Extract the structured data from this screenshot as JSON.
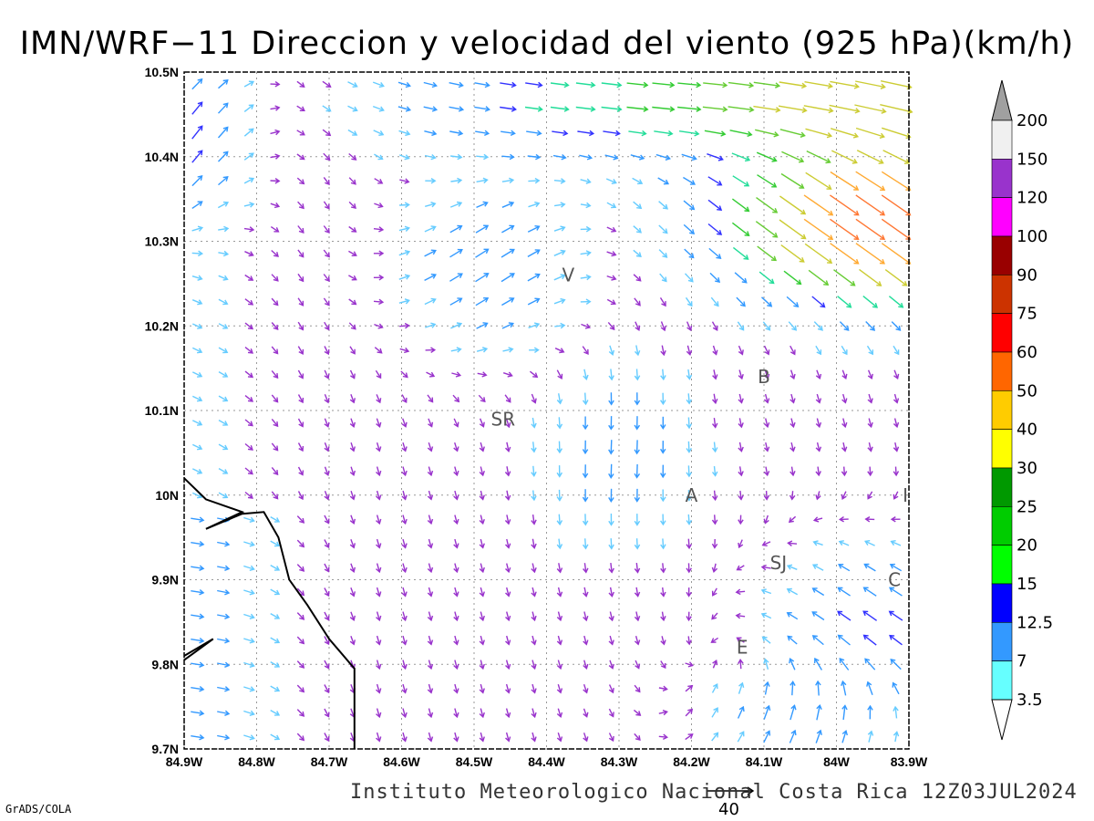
{
  "title": "IMN/WRF−11 Direccion y velocidad del viento (925 hPa)(km/h)",
  "footer": "Instituto Meteorologico Nacional Costa Rica 12Z03JUL2024",
  "software_credit": "GrADS/COLA",
  "reference_vector_label": "40",
  "map": {
    "lat_range": [
      9.7,
      10.5
    ],
    "lon_range": [
      -84.9,
      -83.9
    ],
    "grid": "dotted",
    "lat_labels": [
      "10.5N",
      "10.4N",
      "10.3N",
      "10.2N",
      "10.1N",
      "10N",
      "9.9N",
      "9.8N",
      "9.7N"
    ],
    "lat_values": [
      10.5,
      10.4,
      10.3,
      10.2,
      10.1,
      10.0,
      9.9,
      9.8,
      9.7
    ],
    "lon_labels": [
      "84.9W",
      "84.8W",
      "84.7W",
      "84.6W",
      "84.5W",
      "84.4W",
      "84.3W",
      "84.2W",
      "84.1W",
      "84W",
      "83.9W"
    ],
    "lon_values": [
      -84.9,
      -84.8,
      -84.7,
      -84.6,
      -84.5,
      -84.4,
      -84.3,
      -84.2,
      -84.1,
      -84.0,
      -83.9
    ],
    "places": [
      {
        "label": "V",
        "lat": 10.26,
        "lon": -84.37
      },
      {
        "label": "SR",
        "lat": 10.09,
        "lon": -84.46
      },
      {
        "label": "B",
        "lat": 10.14,
        "lon": -84.1
      },
      {
        "label": "A",
        "lat": 10.0,
        "lon": -84.2
      },
      {
        "label": "SJ",
        "lat": 9.92,
        "lon": -84.08
      },
      {
        "label": "C",
        "lat": 9.9,
        "lon": -83.92
      },
      {
        "label": "E",
        "lat": 9.82,
        "lon": -84.13
      },
      {
        "label": "I",
        "lat": 10.0,
        "lon": -83.905
      }
    ],
    "coastline": [
      [
        -84.9,
        10.02
      ],
      [
        -84.87,
        9.995
      ],
      [
        -84.82,
        9.98
      ],
      [
        -84.87,
        9.96
      ],
      [
        -84.82,
        9.978
      ],
      [
        -84.79,
        9.98
      ],
      [
        -84.77,
        9.95
      ],
      [
        -84.755,
        9.9
      ],
      [
        -84.73,
        9.87
      ],
      [
        -84.7,
        9.83
      ],
      [
        -84.665,
        9.795
      ],
      [
        -84.665,
        9.7
      ]
    ],
    "coastline2": [
      [
        -84.9,
        9.805
      ],
      [
        -84.86,
        9.83
      ],
      [
        -84.9,
        9.81
      ]
    ]
  },
  "colorbar": {
    "levels": [
      "200",
      "150",
      "120",
      "100",
      "90",
      "75",
      "60",
      "50",
      "40",
      "30",
      "25",
      "20",
      "15",
      "12.5",
      "7",
      "3.5"
    ],
    "colors": [
      "#f0f0f0",
      "#9933cc",
      "#ff00ff",
      "#990000",
      "#cc3300",
      "#ff0000",
      "#ff6600",
      "#ffcc00",
      "#ffff00",
      "#009900",
      "#00cc00",
      "#00ff00",
      "#0000ff",
      "#3399ff",
      "#66ffff"
    ],
    "top_arrow_color": "#a0a0a0",
    "bottom_arrow_color": "#ffffff"
  },
  "chart_data": {
    "type": "wind-vector-map",
    "units": "km/h",
    "level": "925 hPa",
    "speed_classes": [
      {
        "min": 0,
        "max": 3.5,
        "color": "#9933cc"
      },
      {
        "min": 3.5,
        "max": 7,
        "color": "#66ccff"
      },
      {
        "min": 7,
        "max": 12.5,
        "color": "#3399ff"
      },
      {
        "min": 12.5,
        "max": 15,
        "color": "#3333ff"
      },
      {
        "min": 15,
        "max": 20,
        "color": "#22dd99"
      },
      {
        "min": 20,
        "max": 25,
        "color": "#33cc33"
      },
      {
        "min": 25,
        "max": 30,
        "color": "#66cc33"
      },
      {
        "min": 30,
        "max": 40,
        "color": "#cccc33"
      },
      {
        "min": 40,
        "max": 50,
        "color": "#ffaa33"
      },
      {
        "min": 50,
        "max": 60,
        "color": "#ff7733"
      },
      {
        "min": 60,
        "max": 75,
        "color": "#ff3355"
      }
    ],
    "reference_vector": {
      "speed": 40,
      "unit": "km/h"
    }
  }
}
